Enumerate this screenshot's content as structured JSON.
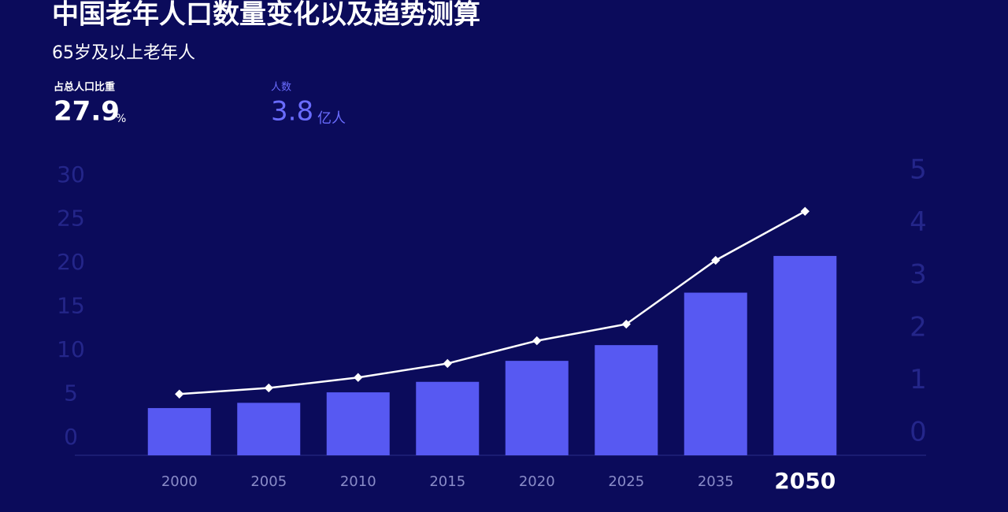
{
  "chart_data": {
    "type": "bar-line",
    "title": "中国老年人口数量变化以及趋势测算",
    "subtitle": "65岁及以上老年人",
    "stats": [
      {
        "label": "占总人口比重",
        "unit": "%"
      },
      {
        "label": "人数",
        "unit": "亿人"
      }
    ],
    "categories": [
      "2000",
      "2005",
      "2010",
      "2015",
      "2020",
      "2025",
      "2035",
      "2050"
    ],
    "series": [
      {
        "type": "bar",
        "color": "#5759f2",
        "axis": "y2",
        "values": [
          0.9,
          1.0,
          1.2,
          1.4,
          1.8,
          2.1,
          3.1,
          3.8
        ]
      },
      {
        "type": "line",
        "color": "#ffffff",
        "values": [
          7.0,
          7.7,
          8.9,
          10.5,
          13.1,
          15.0,
          22.3,
          27.9
        ]
      }
    ],
    "ylim": [
      0,
      30
    ],
    "yticks": [
      0,
      5,
      10,
      15,
      20,
      25,
      30
    ],
    "y2lim": [
      0,
      5
    ],
    "y2ticks": [
      0,
      1,
      2,
      3,
      4,
      5
    ]
  }
}
